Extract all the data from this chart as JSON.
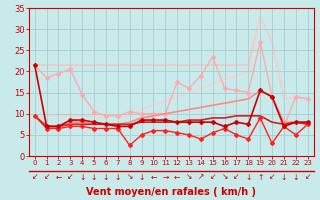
{
  "x": [
    0,
    1,
    2,
    3,
    4,
    5,
    6,
    7,
    8,
    9,
    10,
    11,
    12,
    13,
    14,
    15,
    16,
    17,
    18,
    19,
    20,
    21,
    22,
    23
  ],
  "series": [
    {
      "y": [
        21.5,
        21.5,
        21.5,
        21.5,
        21.5,
        21.5,
        21.5,
        21.5,
        21.5,
        21.5,
        21.5,
        21.5,
        21.5,
        21.5,
        21.5,
        21.5,
        21.5,
        21.5,
        21.5,
        33,
        27,
        13.5,
        14,
        13.5
      ],
      "color": "#ffbbbb",
      "lw": 0.9,
      "marker": null,
      "ms": 0,
      "zorder": 1
    },
    {
      "y": [
        9.5,
        9.5,
        9.5,
        9.5,
        9.5,
        9.5,
        9.5,
        9.5,
        9.5,
        11,
        12,
        13,
        14,
        15,
        16,
        17,
        18,
        19,
        20,
        33,
        27,
        13.5,
        14,
        13.5
      ],
      "color": "#ffcccc",
      "lw": 0.9,
      "marker": null,
      "ms": 0,
      "zorder": 1
    },
    {
      "y": [
        21.5,
        18.5,
        19.5,
        20.5,
        14.5,
        10.5,
        9.5,
        9.5,
        10.5,
        10,
        10,
        10,
        17.5,
        16,
        19,
        23.5,
        16,
        15.5,
        15,
        27,
        14,
        7,
        14,
        13.5
      ],
      "color": "#ffaaaa",
      "lw": 1.0,
      "marker": "D",
      "ms": 2.0,
      "zorder": 2
    },
    {
      "y": [
        9.5,
        7,
        7,
        8,
        8,
        7.5,
        7.5,
        7.5,
        8,
        9,
        9.5,
        10,
        10.5,
        11,
        11.5,
        12,
        12.5,
        13,
        13.5,
        15.5,
        14,
        8,
        8,
        8
      ],
      "color": "#ff8888",
      "lw": 1.2,
      "marker": null,
      "ms": 0,
      "zorder": 3
    },
    {
      "y": [
        9.5,
        7,
        7,
        7.5,
        7.5,
        7.5,
        7.5,
        7.5,
        7.5,
        8,
        8,
        8,
        8,
        8.5,
        8.5,
        9,
        9,
        9.5,
        9.5,
        9.5,
        8,
        7.5,
        8,
        7.5
      ],
      "color": "#cc2222",
      "lw": 1.2,
      "marker": null,
      "ms": 0,
      "zorder": 3
    },
    {
      "y": [
        9.5,
        6.5,
        6.5,
        7,
        7,
        6.5,
        6.5,
        6.5,
        2.5,
        5,
        6,
        6,
        5.5,
        5,
        4,
        5.5,
        6.5,
        5,
        4,
        9,
        3,
        7,
        5,
        7.5
      ],
      "color": "#ff2222",
      "lw": 1.0,
      "marker": "D",
      "ms": 2.0,
      "zorder": 4
    },
    {
      "y": [
        21.5,
        7,
        7,
        8.5,
        8.5,
        8,
        7.5,
        7,
        7,
        8.5,
        8.5,
        8.5,
        8,
        8,
        8,
        8,
        7,
        8,
        7.5,
        15.5,
        14,
        7,
        8,
        8
      ],
      "color": "#cc0000",
      "lw": 1.2,
      "marker": "D",
      "ms": 2.0,
      "zorder": 5
    }
  ],
  "ylim": [
    0,
    35
  ],
  "yticks": [
    0,
    5,
    10,
    15,
    20,
    25,
    30,
    35
  ],
  "xlabel": "Vent moyen/en rafales ( km/h )",
  "bg_color": "#c8eaea",
  "grid_color": "#aacccc",
  "axis_color": "#cc0000",
  "tick_label_color": "#cc0000",
  "xlabel_color": "#cc0000",
  "arrow_chars": [
    "↙",
    "↙",
    "←",
    "↙",
    "↓",
    "↓",
    "↓",
    "↓",
    "↘",
    "↓",
    "←",
    "→",
    "←",
    "↘",
    "↗",
    "↙",
    "↘",
    "↙",
    "↓",
    "↑",
    "↙",
    "↓",
    "↓",
    "↙"
  ]
}
